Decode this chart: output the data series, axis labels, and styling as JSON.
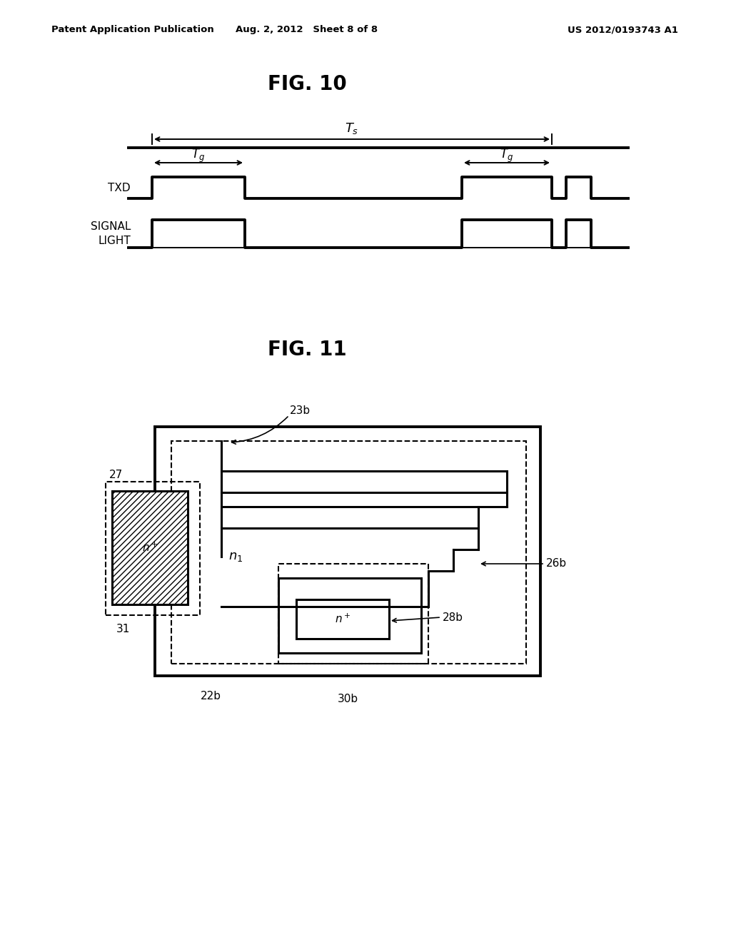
{
  "bg_color": "#ffffff",
  "header_left": "Patent Application Publication",
  "header_center": "Aug. 2, 2012   Sheet 8 of 8",
  "header_right": "US 2012/0193743 A1",
  "fig10_title": "FIG. 10",
  "fig11_title": "FIG. 11",
  "lw": 2.2,
  "lw_thin": 1.4,
  "lw_thick": 2.8
}
